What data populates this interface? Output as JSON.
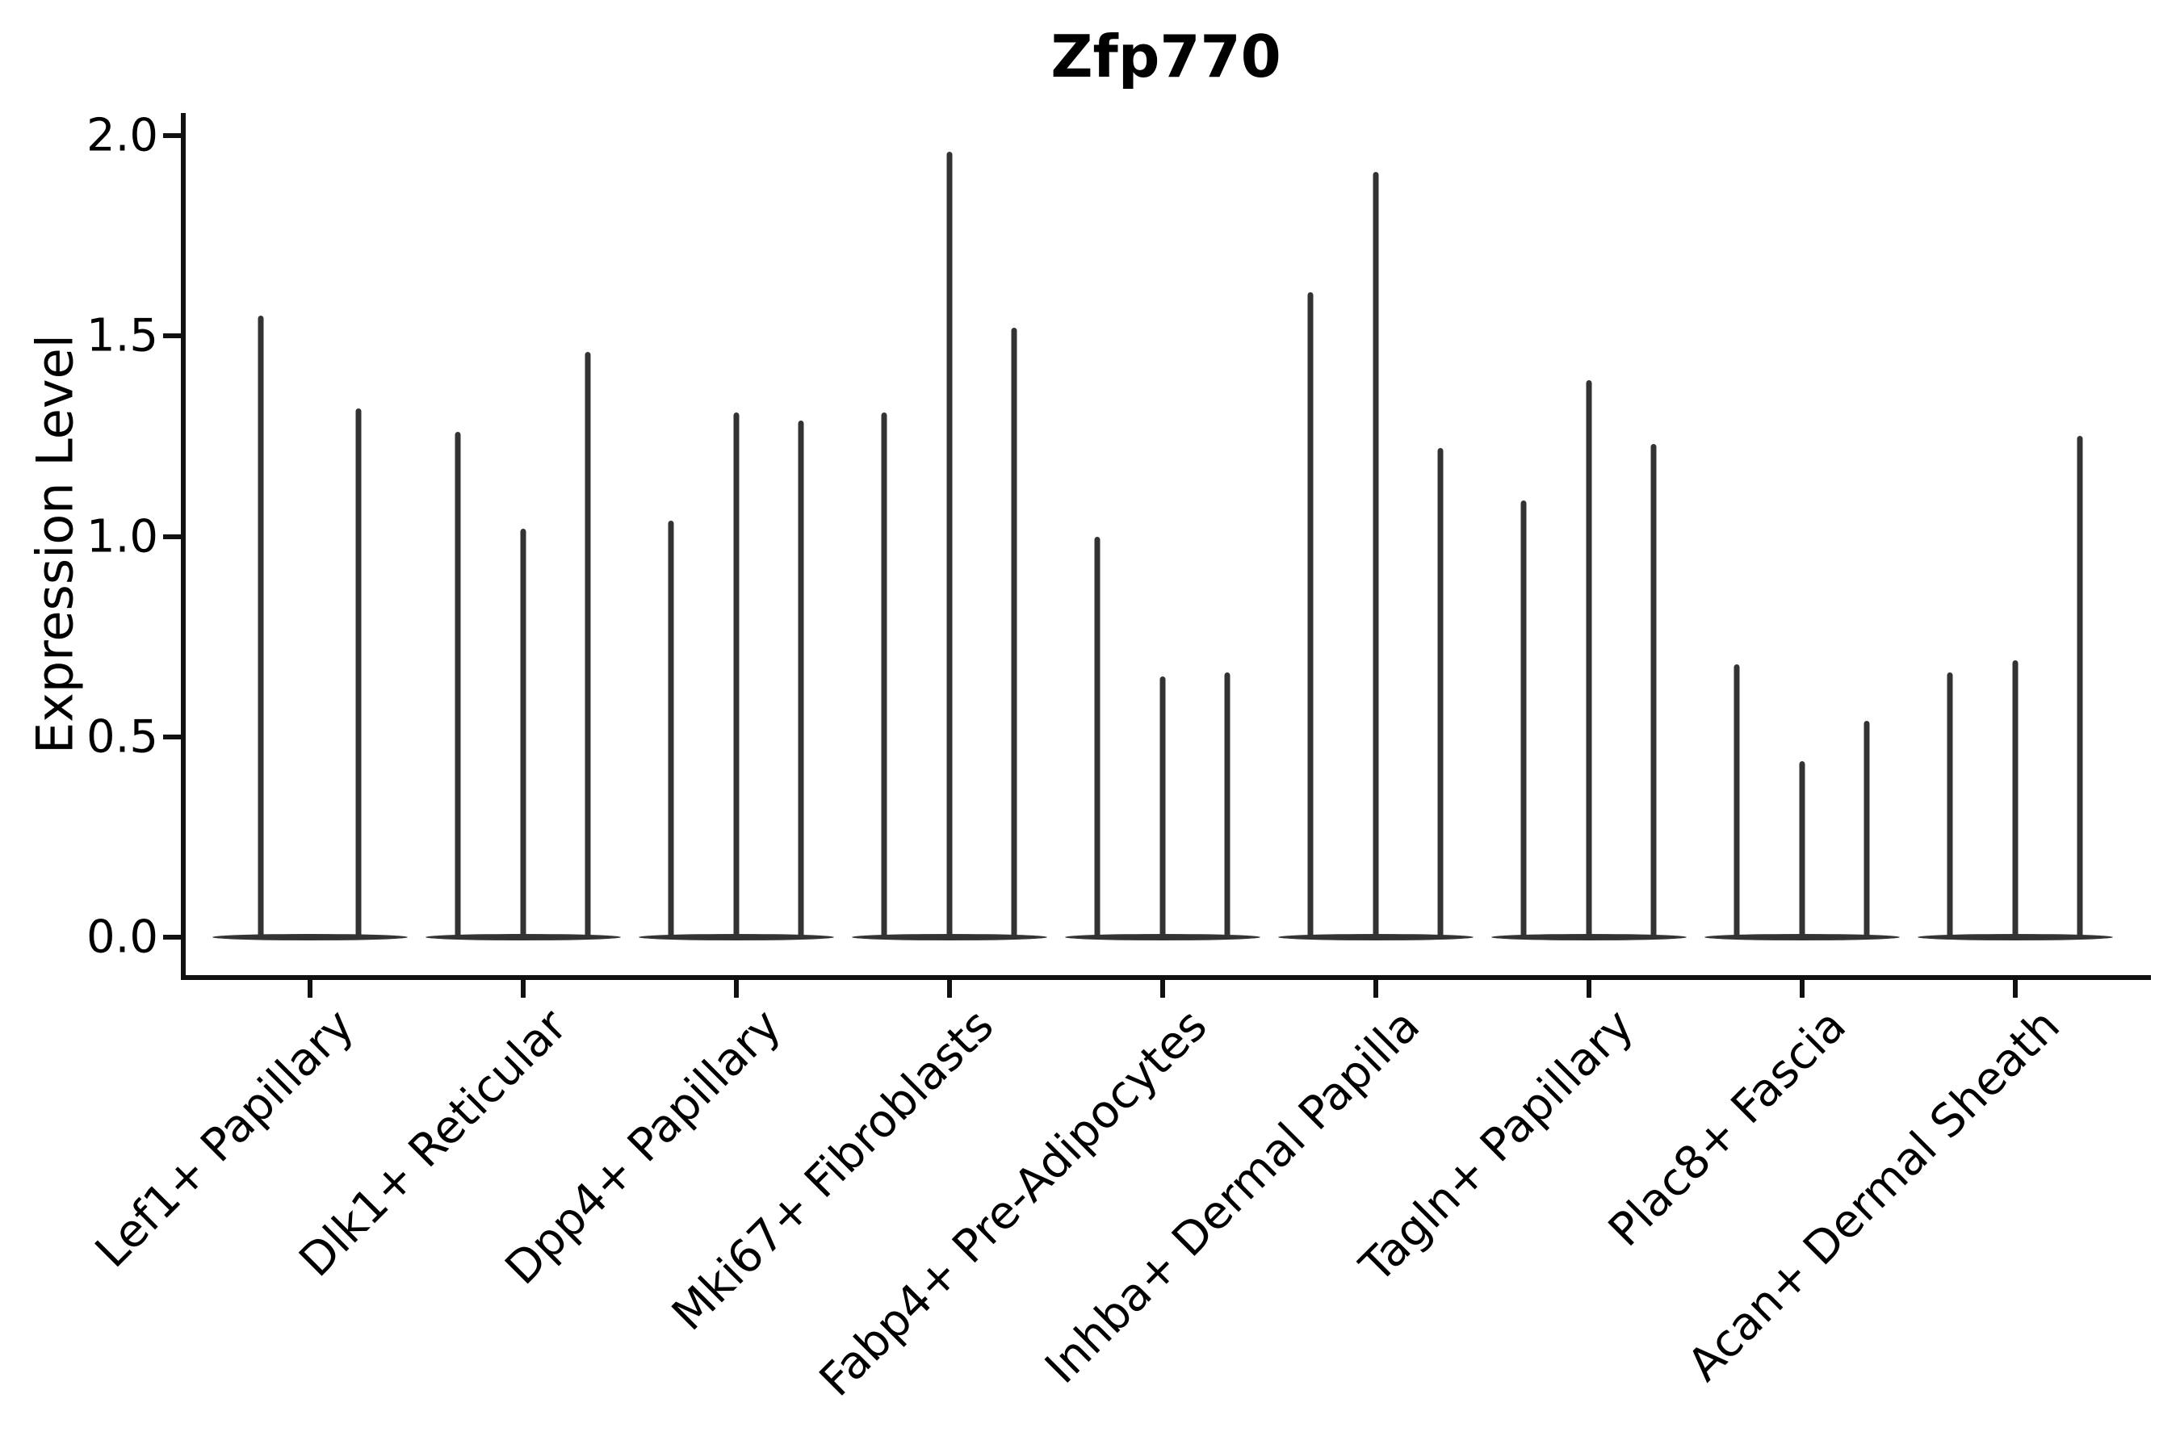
{
  "title": "Zfp770",
  "colors": {
    "violin": "#333333",
    "axis": "#111111",
    "text": "#000000",
    "background": "#ffffff"
  },
  "chart_data": {
    "type": "violin",
    "title": "Zfp770",
    "xlabel": "",
    "ylabel": "Expression Level",
    "ylim": [
      0.0,
      2.05
    ],
    "y_ticks": [
      2.0,
      1.5,
      1.0,
      0.5,
      0.0
    ],
    "grid": "off",
    "legend": "none",
    "style": "needle-thin violins (expression mostly zero) with wide flat base at 0; dark gray on white",
    "categories": [
      "Lef1+ Papillary",
      "Dlk1+ Reticular",
      "Dpp4+ Papillary",
      "Mki67+ Fibroblasts",
      "Fabp4+ Pre-Adipocytes",
      "Inhba+ Dermal Papilla",
      "Tagln+ Papillary",
      "Plac8+ Fascia",
      "Acan+ Dermal Sheath"
    ],
    "groups": [
      {
        "category": "Lef1+ Papillary",
        "violin_peak_expression": [
          1.55,
          1.32
        ]
      },
      {
        "category": "Dlk1+ Reticular",
        "violin_peak_expression": [
          1.26,
          1.02,
          1.46
        ]
      },
      {
        "category": "Dpp4+ Papillary",
        "violin_peak_expression": [
          1.04,
          1.31,
          1.29
        ]
      },
      {
        "category": "Mki67+ Fibroblasts",
        "violin_peak_expression": [
          1.31,
          1.96,
          1.52
        ]
      },
      {
        "category": "Fabp4+ Pre-Adipocytes",
        "violin_peak_expression": [
          1.0,
          0.65,
          0.66
        ]
      },
      {
        "category": "Inhba+ Dermal Papilla",
        "violin_peak_expression": [
          1.61,
          1.91,
          1.22
        ]
      },
      {
        "category": "Tagln+ Papillary",
        "violin_peak_expression": [
          1.09,
          1.39,
          1.23
        ]
      },
      {
        "category": "Plac8+ Fascia",
        "violin_peak_expression": [
          0.68,
          0.44,
          0.54
        ]
      },
      {
        "category": "Acan+ Dermal Sheath",
        "violin_peak_expression": [
          0.66,
          0.69,
          1.25
        ]
      }
    ]
  }
}
